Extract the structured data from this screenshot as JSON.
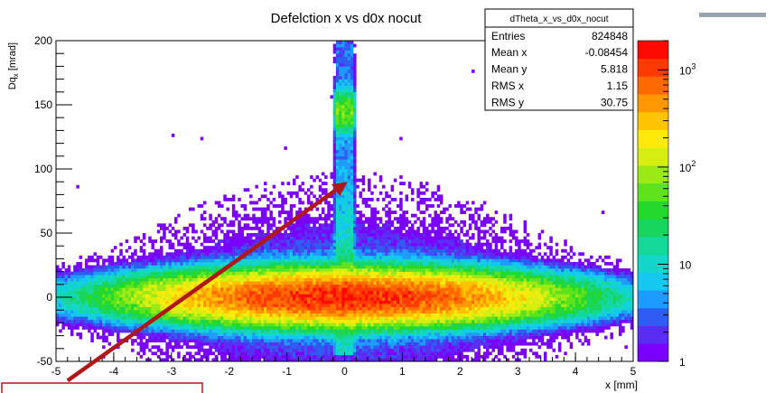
{
  "chart_data": {
    "type": "heatmap",
    "title": "Defelction x vs d0x nocut",
    "xlabel": "x [mm]",
    "ylabel_base": "Dq",
    "ylabel_sub": "x",
    "ylabel_unit": " [mrad]",
    "xlim": [
      -5,
      5
    ],
    "ylim": [
      -50,
      200
    ],
    "x_ticks": [
      -5,
      -4,
      -3,
      -2,
      -1,
      0,
      1,
      2,
      3,
      4,
      5
    ],
    "y_ticks": [
      -50,
      0,
      50,
      100,
      150,
      200
    ],
    "zscale": "log",
    "zlim": [
      1,
      2000
    ],
    "z_tick_labels": [
      {
        "value": 1,
        "label": "1"
      },
      {
        "value": 10,
        "label": "10"
      },
      {
        "value": 100,
        "base": "10",
        "exp": "2"
      },
      {
        "value": 1000,
        "base": "10",
        "exp": "3"
      }
    ],
    "palette": [
      "#7a00ff",
      "#5a2df5",
      "#2f5cf0",
      "#1e9bff",
      "#13c9ef",
      "#12d7c8",
      "#14d79a",
      "#17d55e",
      "#24d92a",
      "#5ee21c",
      "#9bea15",
      "#d7ef10",
      "#fdea0b",
      "#ffc400",
      "#ff9800",
      "#ff6a00",
      "#ff3a00",
      "#ff0a00"
    ],
    "features": [
      {
        "kind": "horizontal band",
        "y_center": 0,
        "y_sigma": 9,
        "x_range": [
          -5,
          5
        ],
        "peak": "near x = 0 to -0.5"
      },
      {
        "kind": "vertical band",
        "x_center": 0,
        "x_width": 0.35,
        "y_range": [
          -40,
          200
        ],
        "peak_y": 145
      }
    ],
    "stats": {
      "name": "dTheta_x_vs_d0x_nocut",
      "rows": [
        {
          "label": "Entries",
          "value": "824848"
        },
        {
          "label": "Mean x",
          "value": "-0.08454"
        },
        {
          "label": "Mean y",
          "value": "5.818"
        },
        {
          "label": "RMS x",
          "value": "1.15"
        },
        {
          "label": "RMS y",
          "value": "30.75"
        }
      ]
    },
    "annotation": {
      "kind": "arrow",
      "color": "#b01818",
      "from": [
        -4.8,
        -65
      ],
      "to": [
        0.05,
        90
      ]
    }
  }
}
